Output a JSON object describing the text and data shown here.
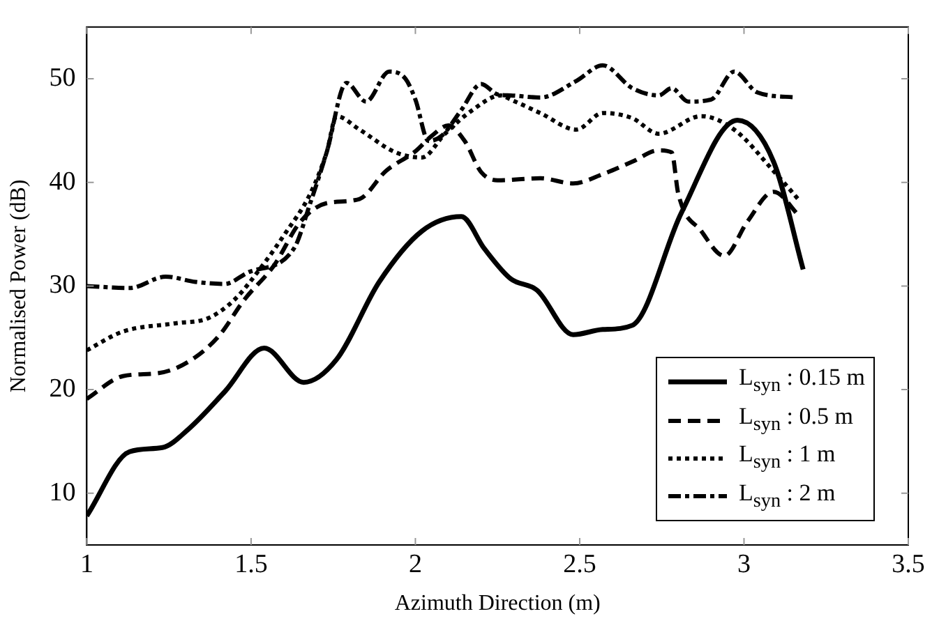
{
  "chart_data": {
    "type": "line",
    "xlabel": "Azimuth Direction (m)",
    "ylabel": "Normalised Power (dB)",
    "xlim": [
      1,
      3.5
    ],
    "ylim": [
      5,
      55
    ],
    "xticks": [
      1,
      1.5,
      2,
      2.5,
      3,
      3.5
    ],
    "yticks": [
      10,
      20,
      30,
      40,
      50
    ],
    "grid": false,
    "legend": "bottom right",
    "marker": "none",
    "series": [
      {
        "name": "L$_{syn}$ : 0.15 m",
        "color": "#000000",
        "line_style": "solid",
        "x": [
          1.0,
          1.13,
          1.23,
          1.31,
          1.42,
          1.54,
          1.66,
          1.76,
          1.89,
          2.02,
          2.14,
          2.21,
          2.29,
          2.37,
          2.48,
          2.57,
          2.66,
          2.81,
          2.98,
          3.09,
          3.18
        ],
        "values": [
          7.8,
          14,
          14.4,
          16.2,
          19.8,
          24,
          20.7,
          22.9,
          30.4,
          35.3,
          36.7,
          33.6,
          30.7,
          29.6,
          25.3,
          25.8,
          26.2,
          37.1,
          46,
          42,
          31.6
        ]
      },
      {
        "name": "L$_{syn}$ : 0.5 m",
        "color": "#000000",
        "line_style": "dashed",
        "x": [
          1.0,
          1.11,
          1.22,
          1.31,
          1.4,
          1.48,
          1.57,
          1.65,
          1.73,
          1.83,
          1.91,
          2.0,
          2.05,
          2.1,
          2.15,
          2.2,
          2.25,
          2.38,
          2.48,
          2.57,
          2.66,
          2.74,
          2.78,
          2.8,
          2.87,
          2.94,
          3.01,
          3.09,
          3.17
        ],
        "values": [
          19.1,
          21.3,
          21.6,
          22.7,
          25.1,
          28.7,
          32,
          36.2,
          38,
          38.4,
          41.1,
          43,
          44.5,
          45.5,
          44,
          41,
          40.2,
          40.4,
          39.9,
          40.8,
          42,
          43.1,
          42.9,
          38.9,
          35.3,
          32.9,
          36.2,
          39.1,
          36.7
        ]
      },
      {
        "name": "L$_{syn}$ : 1 m",
        "color": "#000000",
        "line_style": "dotted",
        "x": [
          1.0,
          1.11,
          1.27,
          1.37,
          1.45,
          1.54,
          1.6,
          1.68,
          1.73,
          1.76,
          1.83,
          1.94,
          2.02,
          2.09,
          2.17,
          2.26,
          2.29,
          2.38,
          2.49,
          2.57,
          2.66,
          2.74,
          2.87,
          2.97,
          3.09,
          3.17
        ],
        "values": [
          23.8,
          25.6,
          26.4,
          26.9,
          28.7,
          32.2,
          34.9,
          38.9,
          42.9,
          46.4,
          45.1,
          42.9,
          42.4,
          44.7,
          46.9,
          48.4,
          48,
          46.7,
          45.1,
          46.7,
          46.2,
          44.7,
          46.4,
          45.1,
          41.1,
          38.2
        ]
      },
      {
        "name": "L$_{syn}$ : 2 m",
        "color": "#000000",
        "line_style": "dashdot",
        "x": [
          1.0,
          1.13,
          1.24,
          1.33,
          1.42,
          1.49,
          1.63,
          1.68,
          1.73,
          1.79,
          1.85,
          1.92,
          1.97,
          2.0,
          2.04,
          2.08,
          2.14,
          2.2,
          2.25,
          2.29,
          2.38,
          2.49,
          2.57,
          2.66,
          2.74,
          2.78,
          2.83,
          2.9,
          2.97,
          3.04,
          3.16
        ],
        "values": [
          30,
          29.8,
          30.9,
          30.4,
          30.2,
          31.3,
          33.6,
          38,
          42.9,
          49.6,
          47.8,
          50.7,
          50,
          48,
          44,
          44.5,
          47,
          49.5,
          48.5,
          48.4,
          48.2,
          49.8,
          51.3,
          49.1,
          48.4,
          49.1,
          47.8,
          48,
          50.7,
          48.7,
          48.2
        ]
      }
    ]
  }
}
